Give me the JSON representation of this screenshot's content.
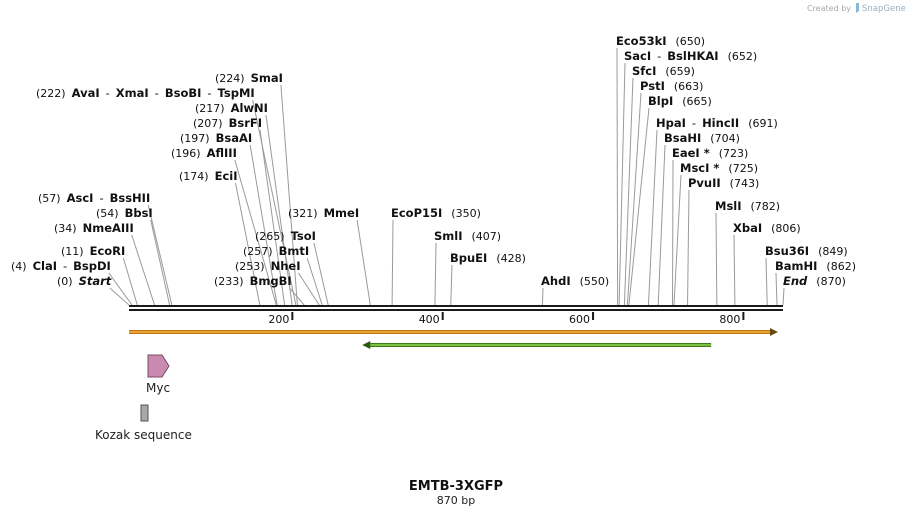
{
  "map": {
    "title": "EMTB-3XGFP",
    "length_label": "870 bp",
    "length_bp": 870,
    "credit": "Created by",
    "brand": "SnapGene",
    "colors": {
      "backbone": "#1a1a1a",
      "orange_feature": "#f0a030",
      "green_feature": "#7bc043",
      "myc": "#c98ab0",
      "kozak": "#a8a8a8"
    }
  },
  "ticks": [
    {
      "bp": 200,
      "label": "200"
    },
    {
      "bp": 400,
      "label": "400"
    },
    {
      "bp": 600,
      "label": "600"
    },
    {
      "bp": 800,
      "label": "800"
    }
  ],
  "sites": [
    {
      "parts": [
        "(0)",
        "Start"
      ],
      "bp": 0
    },
    {
      "parts": [
        "(4)",
        "ClaI",
        "-",
        "BspDI"
      ],
      "bp": 4
    },
    {
      "parts": [
        "(11)",
        "EcoRI"
      ],
      "bp": 11
    },
    {
      "parts": [
        "(34)",
        "NmeAIII"
      ],
      "bp": 34
    },
    {
      "parts": [
        "(54)",
        "BbsI"
      ],
      "bp": 54
    },
    {
      "parts": [
        "(57)",
        "AscI",
        "-",
        "BssHII"
      ],
      "bp": 57
    },
    {
      "parts": [
        "(174)",
        "EciI"
      ],
      "bp": 174
    },
    {
      "parts": [
        "(196)",
        "AflIII"
      ],
      "bp": 196
    },
    {
      "parts": [
        "(197)",
        "BsaAI"
      ],
      "bp": 197
    },
    {
      "parts": [
        "(207)",
        "BsrFI"
      ],
      "bp": 207
    },
    {
      "parts": [
        "(217)",
        "AlwNI"
      ],
      "bp": 217
    },
    {
      "parts": [
        "(222)",
        "AvaI",
        "-",
        "XmaI",
        "-",
        "BsoBI",
        "-",
        "TspMI"
      ],
      "bp": 222
    },
    {
      "parts": [
        "(224)",
        "SmaI"
      ],
      "bp": 224
    },
    {
      "parts": [
        "(233)",
        "BmgBI"
      ],
      "bp": 233
    },
    {
      "parts": [
        "(253)",
        "NheI"
      ],
      "bp": 253
    },
    {
      "parts": [
        "(257)",
        "BmtI"
      ],
      "bp": 257
    },
    {
      "parts": [
        "(265)",
        "TsoI"
      ],
      "bp": 265
    },
    {
      "parts": [
        "(321)",
        "MmeI"
      ],
      "bp": 321
    },
    {
      "parts": [
        "EcoP15I",
        "(350)"
      ],
      "bp": 350
    },
    {
      "parts": [
        "SmlI",
        "(407)"
      ],
      "bp": 407
    },
    {
      "parts": [
        "BpuEI",
        "(428)"
      ],
      "bp": 428
    },
    {
      "parts": [
        "AhdI",
        "(550)"
      ],
      "bp": 550
    },
    {
      "parts": [
        "Eco53kI",
        "(650)"
      ],
      "bp": 650
    },
    {
      "parts": [
        "SacI",
        "-",
        "BslHKAI",
        "(652)"
      ],
      "bp": 652
    },
    {
      "parts": [
        "SfcI",
        "(659)"
      ],
      "bp": 659
    },
    {
      "parts": [
        "PstI",
        "(663)"
      ],
      "bp": 663
    },
    {
      "parts": [
        "BlpI",
        "(665)"
      ],
      "bp": 665
    },
    {
      "parts": [
        "HpaI",
        "-",
        "HincII",
        "(691)"
      ],
      "bp": 691
    },
    {
      "parts": [
        "BsaHI",
        "(704)"
      ],
      "bp": 704
    },
    {
      "parts": [
        "EaeI *",
        "(723)"
      ],
      "bp": 723
    },
    {
      "parts": [
        "MscI *",
        "(725)"
      ],
      "bp": 725
    },
    {
      "parts": [
        "PvuII",
        "(743)"
      ],
      "bp": 743
    },
    {
      "parts": [
        "MslI",
        "(782)"
      ],
      "bp": 782
    },
    {
      "parts": [
        "XbaI",
        "(806)"
      ],
      "bp": 806
    },
    {
      "parts": [
        "Bsu36I",
        "(849)"
      ],
      "bp": 849
    },
    {
      "parts": [
        "BamHI",
        "(862)"
      ],
      "bp": 862
    },
    {
      "parts": [
        "End",
        "(870)"
      ],
      "bp": 870
    }
  ],
  "features": [
    {
      "name": "orange-orf",
      "start_bp": 0,
      "end_bp": 870,
      "direction": "forward"
    },
    {
      "name": "green-orf",
      "start_bp": 309,
      "end_bp": 785,
      "direction": "reverse"
    },
    {
      "name": "Myc",
      "label": "Myc",
      "start_bp": 27,
      "end_bp": 57,
      "direction": "forward"
    },
    {
      "name": "Kozak sequence",
      "label": "Kozak sequence",
      "start_bp": 16,
      "end_bp": 25,
      "direction": "none"
    }
  ]
}
